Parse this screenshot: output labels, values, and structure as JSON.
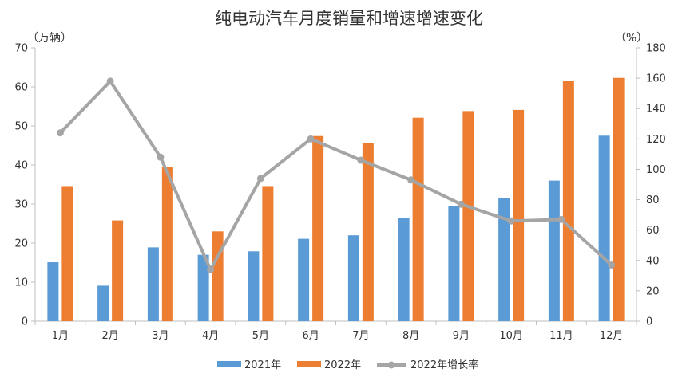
{
  "chart_data": {
    "type": "bar",
    "title": "纯电动汽车月度销量和增速增速变化",
    "left_unit": "（万辆）",
    "right_unit": "（%）",
    "categories": [
      "1月",
      "2月",
      "3月",
      "4月",
      "5月",
      "6月",
      "7月",
      "8月",
      "9月",
      "10月",
      "11月",
      "12月"
    ],
    "series": [
      {
        "name": "2021年",
        "type": "bar",
        "axis": "left",
        "color": "#5b9bd5",
        "values": [
          15.1,
          9.1,
          18.9,
          17.0,
          17.9,
          21.1,
          22.0,
          26.4,
          29.5,
          31.6,
          36.0,
          47.5
        ]
      },
      {
        "name": "2022年",
        "type": "bar",
        "axis": "left",
        "color": "#ed7d31",
        "values": [
          34.6,
          25.8,
          39.5,
          23.0,
          34.6,
          47.4,
          45.6,
          52.1,
          53.8,
          54.1,
          61.5,
          62.3
        ]
      },
      {
        "name": "2022年增长率",
        "type": "line",
        "axis": "right",
        "color": "#a5a5a5",
        "values": [
          124,
          158,
          108,
          34,
          94,
          120,
          106,
          93,
          77,
          66,
          67,
          37
        ]
      }
    ],
    "left_ylim": [
      0,
      70
    ],
    "left_ticks": [
      "0",
      "10",
      "20",
      "30",
      "40",
      "50",
      "60",
      "70"
    ],
    "right_ylim": [
      0,
      180
    ],
    "right_ticks": [
      "0",
      "20",
      "40",
      "60",
      "80",
      "100",
      "120",
      "140",
      "160",
      "180"
    ],
    "grid": false,
    "legend_position": "bottom"
  }
}
